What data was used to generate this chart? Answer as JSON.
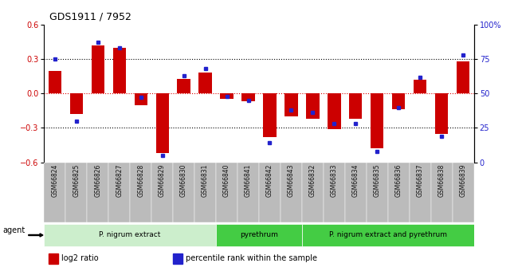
{
  "title": "GDS1911 / 7952",
  "samples": [
    "GSM66824",
    "GSM66825",
    "GSM66826",
    "GSM66827",
    "GSM66828",
    "GSM66829",
    "GSM66830",
    "GSM66831",
    "GSM66840",
    "GSM66841",
    "GSM66842",
    "GSM66843",
    "GSM66832",
    "GSM66833",
    "GSM66834",
    "GSM66835",
    "GSM66836",
    "GSM66837",
    "GSM66838",
    "GSM66839"
  ],
  "log2_ratio": [
    0.2,
    -0.18,
    0.42,
    0.4,
    -0.1,
    -0.52,
    0.13,
    0.18,
    -0.05,
    -0.07,
    -0.38,
    -0.2,
    -0.22,
    -0.31,
    -0.22,
    -0.48,
    -0.14,
    0.12,
    -0.35,
    0.28
  ],
  "percentile": [
    75,
    30,
    87,
    83,
    47,
    5,
    63,
    68,
    48,
    45,
    14,
    38,
    36,
    28,
    28,
    8,
    40,
    62,
    19,
    78
  ],
  "ylim_left": [
    -0.6,
    0.6
  ],
  "ylim_right": [
    0,
    100
  ],
  "yticks_left": [
    -0.6,
    -0.3,
    0.0,
    0.3,
    0.6
  ],
  "yticks_right": [
    0,
    25,
    50,
    75,
    100
  ],
  "hlines_dotted": [
    0.3,
    -0.3
  ],
  "bar_color": "#cc0000",
  "dot_color": "#2222cc",
  "tick_area_color": "#b8b8b8",
  "group_data": [
    {
      "start": 0,
      "end": 8,
      "color": "#cceecc",
      "label": "P. nigrum extract"
    },
    {
      "start": 8,
      "end": 12,
      "color": "#44cc44",
      "label": "pyrethrum"
    },
    {
      "start": 12,
      "end": 20,
      "color": "#44cc44",
      "label": "P. nigrum extract and pyrethrum"
    }
  ],
  "legend_items": [
    {
      "color": "#cc0000",
      "label": "log2 ratio"
    },
    {
      "color": "#2222cc",
      "label": "percentile rank within the sample"
    }
  ]
}
